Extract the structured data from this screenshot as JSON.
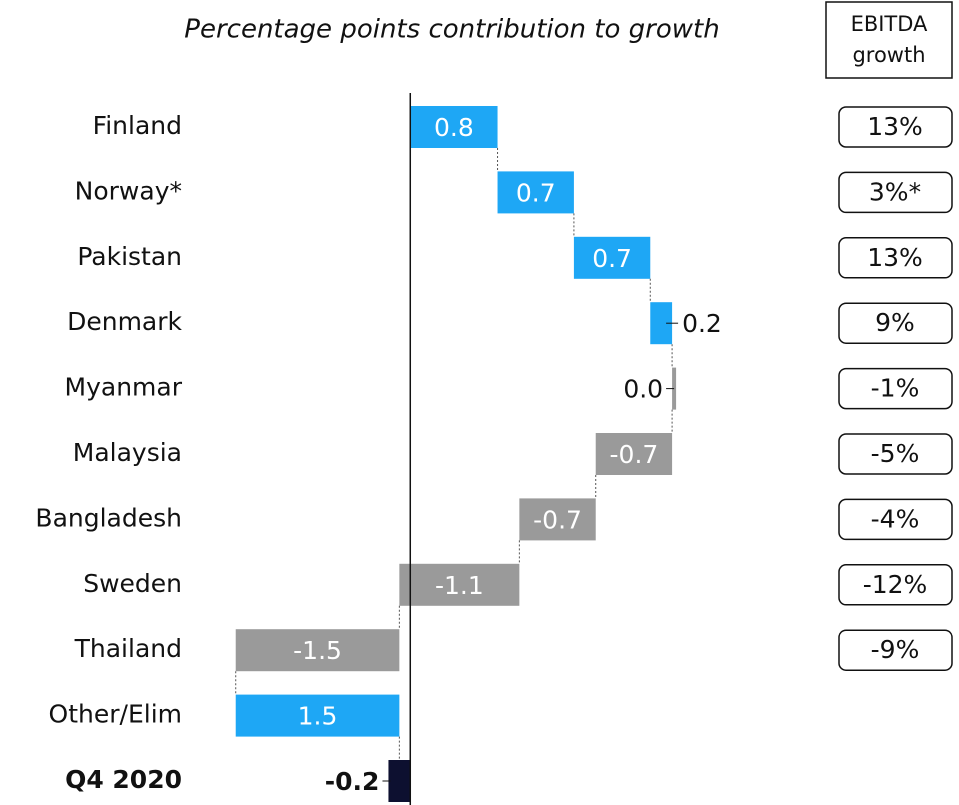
{
  "chart_data": {
    "type": "waterfall",
    "title": "Percentage points contribution to growth",
    "categories": [
      "Finland",
      "Norway*",
      "Pakistan",
      "Denmark",
      "Myanmar",
      "Malaysia",
      "Bangladesh",
      "Sweden",
      "Thailand",
      "Other/Elim",
      "Q4 2020"
    ],
    "values": [
      0.8,
      0.7,
      0.7,
      0.2,
      0.0,
      -0.7,
      -0.7,
      -1.1,
      -1.5,
      1.5,
      -0.2
    ],
    "value_labels": [
      "0.8",
      "0.7",
      "0.7",
      "0.2",
      "0.0",
      "-0.7",
      "-0.7",
      "-1.1",
      "-1.5",
      "1.5",
      "-0.2"
    ],
    "colors": [
      "#1ea7f5",
      "#1ea7f5",
      "#1ea7f5",
      "#1ea7f5",
      "#9a9a9a",
      "#9a9a9a",
      "#9a9a9a",
      "#9a9a9a",
      "#9a9a9a",
      "#1ea7f5",
      "#0d1030"
    ],
    "xlim": [
      -1.9,
      2.5
    ],
    "ebitda_growth": {
      "title_lines": [
        "EBITDA",
        "growth"
      ],
      "values": [
        "13%",
        "3%*",
        "13%",
        "9%",
        "-1%",
        "-5%",
        "-4%",
        "-12%",
        "-9%"
      ]
    }
  }
}
